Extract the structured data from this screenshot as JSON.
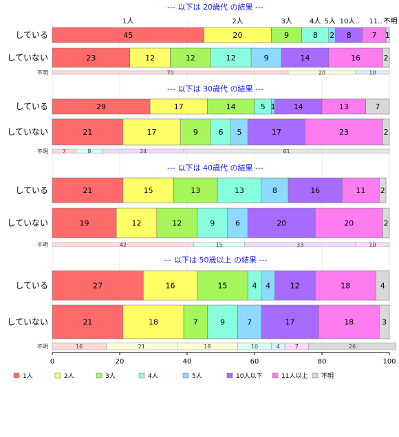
{
  "chart_data": {
    "type": "bar",
    "orientation": "horizontal",
    "stacked": true,
    "xlim": [
      0,
      100
    ],
    "xticks": [
      "0",
      "20",
      "40",
      "60",
      "80",
      "100"
    ],
    "categories_series": [
      "1人",
      "2人",
      "3人",
      "4人",
      "5人",
      "10人以下",
      "11人以上",
      "不明"
    ],
    "colors": [
      "#ff6b6b",
      "#ffff66",
      "#a6f55a",
      "#88ffdd",
      "#8dd9ff",
      "#a86bff",
      "#ff7bf0",
      "#d9d9d9"
    ],
    "unknown_label": "不明",
    "top_labels": [
      "1人",
      "2人",
      "3人",
      "4人",
      "5人",
      "10人..",
      "11..",
      "不明"
    ],
    "sections": [
      {
        "title": "--- 以下は 20歳代 の結果 ---",
        "rows": [
          {
            "label": "している",
            "values": [
              45,
              20,
              9,
              8,
              2,
              8,
              7,
              1
            ]
          },
          {
            "label": "していない",
            "values": [
              23,
              12,
              12,
              12,
              9,
              14,
              16,
              2
            ]
          }
        ],
        "unknown_row": {
          "values": [
            70,
            20,
            10
          ],
          "colors": [
            "#ffd9d9",
            "#ffffd9",
            "#d9f2ff"
          ]
        }
      },
      {
        "title": "--- 以下は 30歳代 の結果 ---",
        "rows": [
          {
            "label": "している",
            "values": [
              29,
              17,
              14,
              5,
              1,
              14,
              13,
              7
            ]
          },
          {
            "label": "していない",
            "values": [
              21,
              17,
              9,
              6,
              5,
              17,
              23,
              2
            ]
          }
        ],
        "unknown_row": {
          "values": [
            7,
            8,
            24,
            61
          ],
          "colors": [
            "#ffd9d9",
            "#d9fff4",
            "#f0d9ff",
            "#e6e6e6"
          ]
        }
      },
      {
        "title": "--- 以下は 40歳代 の結果 ---",
        "rows": [
          {
            "label": "している",
            "values": [
              21,
              15,
              13,
              13,
              8,
              16,
              11,
              2
            ]
          },
          {
            "label": "していない",
            "values": [
              19,
              12,
              12,
              9,
              6,
              20,
              20,
              2
            ]
          }
        ],
        "unknown_row": {
          "values": [
            42,
            15,
            33,
            10
          ],
          "colors": [
            "#ffd9d9",
            "#d9fff4",
            "#f0d9ff",
            "#ffd9f9"
          ]
        }
      },
      {
        "title": "--- 以下は 50歳以上 の結果 ---",
        "rows": [
          {
            "label": "している",
            "values": [
              27,
              16,
              15,
              4,
              4,
              12,
              18,
              4
            ]
          },
          {
            "label": "していない",
            "values": [
              21,
              18,
              7,
              9,
              7,
              17,
              18,
              3
            ]
          }
        ],
        "unknown_row": {
          "values": [
            16,
            21,
            18,
            10,
            4,
            7,
            26
          ],
          "colors": [
            "#ffd9d9",
            "#ffffd9",
            "#ffffd9",
            "#d9fff4",
            "#d9f2ff",
            "#ffd9f9",
            "#d9d9d9"
          ]
        }
      }
    ],
    "legend": [
      "1人",
      "2人",
      "3人",
      "4人",
      "5人",
      "10人以下",
      "11人以上",
      "不明"
    ]
  }
}
